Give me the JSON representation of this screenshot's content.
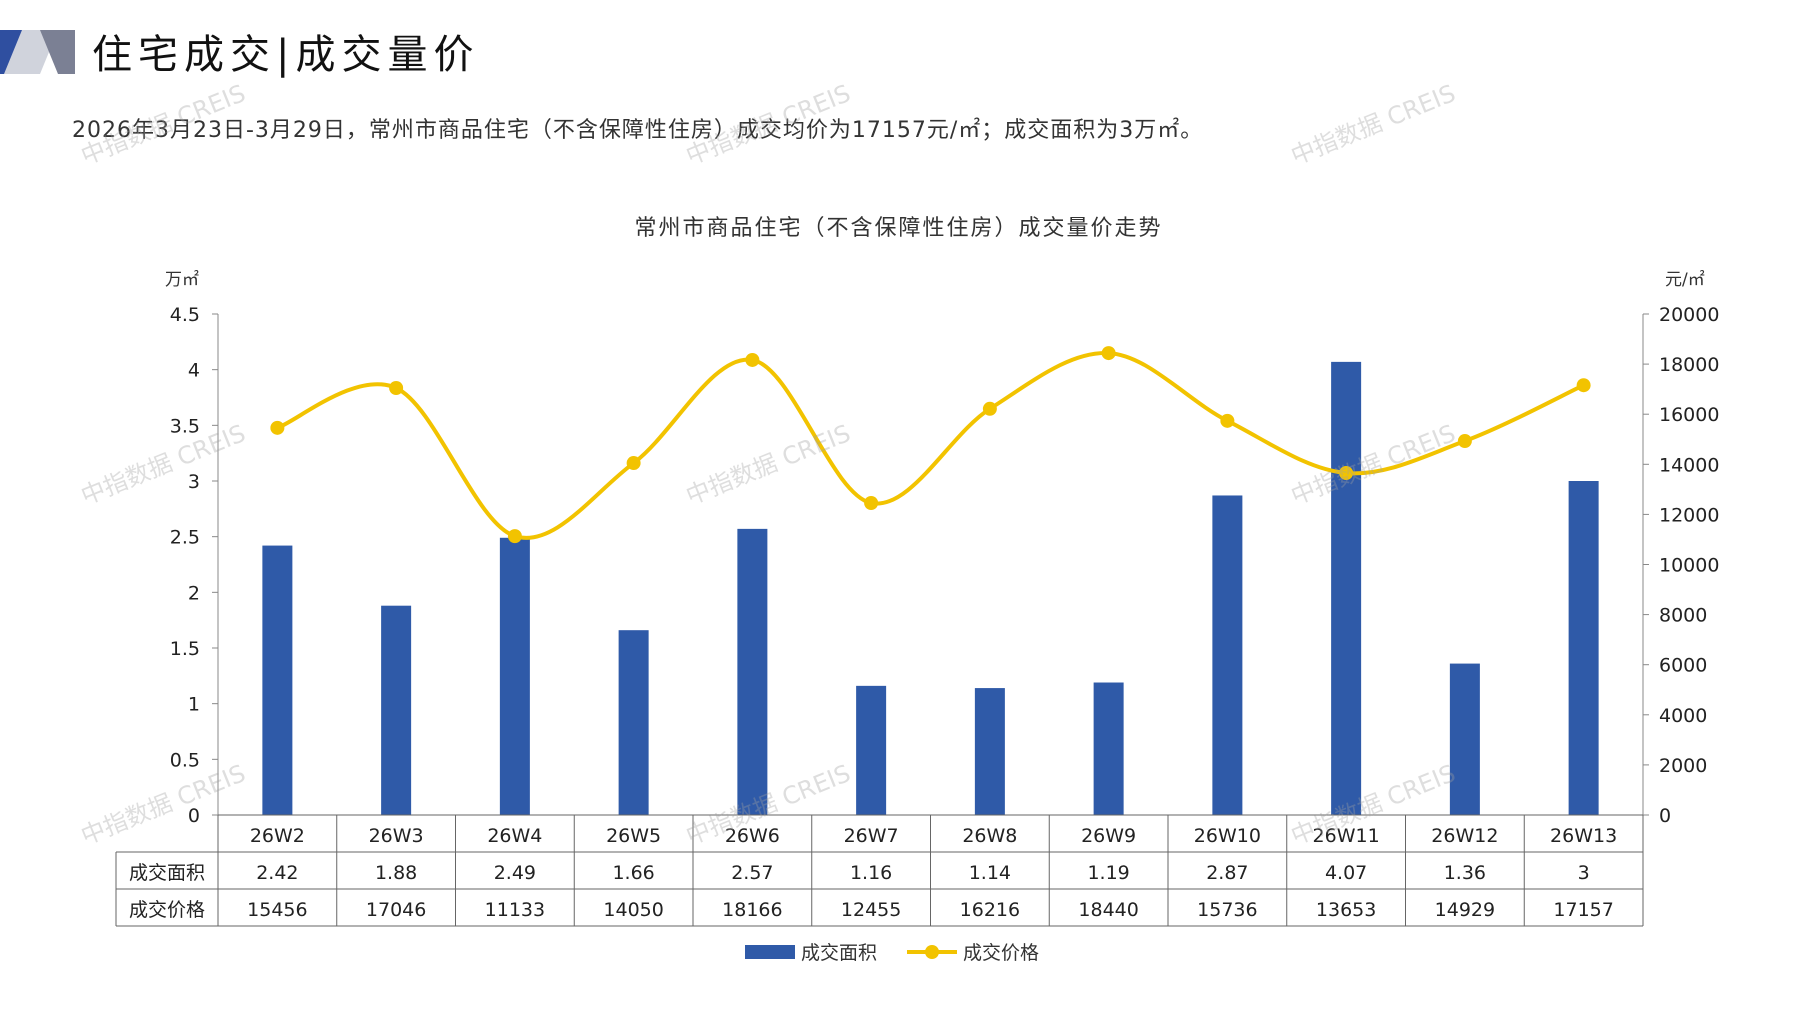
{
  "header": {
    "title": "住宅成交|成交量价"
  },
  "summary": "2026年3月23日-3月29日，常州市商品住宅（不含保障性住房）成交均价为17157元/㎡；成交面积为3万㎡。",
  "watermark_text": "中指数据 CREIS",
  "colors": {
    "bar": "#2f5aa8",
    "line": "#f2c300",
    "axis": "#888888"
  },
  "chart_data": {
    "type": "bar",
    "title": "常州市商品住宅（不含保障性住房）成交量价走势",
    "categories": [
      "26W2",
      "26W3",
      "26W4",
      "26W5",
      "26W6",
      "26W7",
      "26W8",
      "26W9",
      "26W10",
      "26W11",
      "26W12",
      "26W13"
    ],
    "left_unit": "万㎡",
    "right_unit": "元/㎡",
    "left_axis": {
      "ylim": [
        0,
        4.5
      ],
      "ticks": [
        "0",
        "0.5",
        "1",
        "1.5",
        "2",
        "2.5",
        "3",
        "3.5",
        "4",
        "4.5"
      ],
      "tick_values": [
        0,
        0.5,
        1,
        1.5,
        2,
        2.5,
        3,
        3.5,
        4,
        4.5
      ]
    },
    "right_axis": {
      "ylim": [
        0,
        20000
      ],
      "ticks": [
        "0",
        "2000",
        "4000",
        "6000",
        "8000",
        "10000",
        "12000",
        "14000",
        "16000",
        "18000",
        "20000"
      ],
      "tick_values": [
        0,
        2000,
        4000,
        6000,
        8000,
        10000,
        12000,
        14000,
        16000,
        18000,
        20000
      ]
    },
    "series": [
      {
        "name": "成交面积",
        "type": "bar",
        "axis": "left",
        "values": [
          2.42,
          1.88,
          2.49,
          1.66,
          2.57,
          1.16,
          1.14,
          1.19,
          2.87,
          4.07,
          1.36,
          3
        ],
        "labels": [
          "2.42",
          "1.88",
          "2.49",
          "1.66",
          "2.57",
          "1.16",
          "1.14",
          "1.19",
          "2.87",
          "4.07",
          "1.36",
          "3"
        ]
      },
      {
        "name": "成交价格",
        "type": "line",
        "axis": "right",
        "smooth": true,
        "values": [
          15456,
          17046,
          11133,
          14050,
          18166,
          12455,
          16216,
          18440,
          15736,
          13653,
          14929,
          17157
        ],
        "labels": [
          "15456",
          "17046",
          "11133",
          "14050",
          "18166",
          "12455",
          "16216",
          "18440",
          "15736",
          "13653",
          "14929",
          "17157"
        ]
      }
    ],
    "data_table": true,
    "legend_position": "bottom"
  }
}
